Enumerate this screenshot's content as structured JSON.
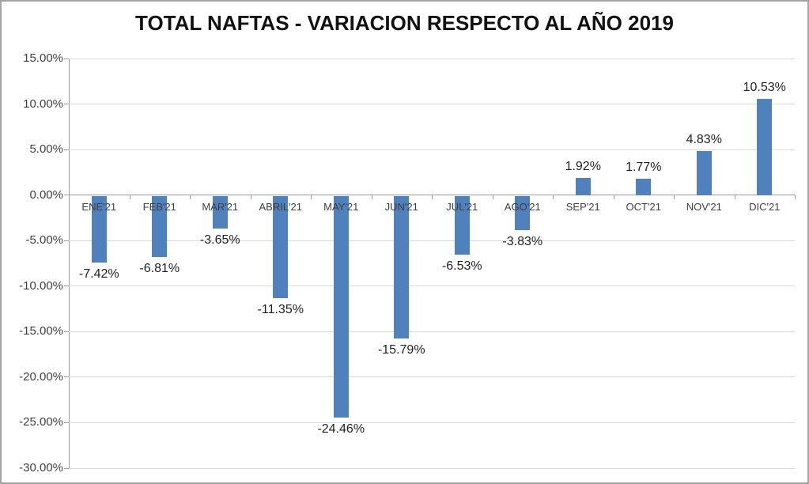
{
  "chart_data": {
    "type": "bar",
    "title": "TOTAL NAFTAS - VARIACION RESPECTO AL AÑO 2019",
    "categories": [
      "ENE'21",
      "FEB'21",
      "MAR'21",
      "ABRIL'21",
      "MAY'21",
      "JUN'21",
      "JUL'21",
      "AGO'21",
      "SEP'21",
      "OCT'21",
      "NOV'21",
      "DIC'21"
    ],
    "values": [
      -7.42,
      -6.81,
      -3.65,
      -11.35,
      -24.46,
      -15.79,
      -6.53,
      -3.83,
      1.92,
      1.77,
      4.83,
      10.53
    ],
    "data_labels": [
      "-7.42%",
      "-6.81%",
      "-3.65%",
      "-11.35%",
      "-24.46%",
      "-15.79%",
      "-6.53%",
      "-3.83%",
      "1.92%",
      "1.77%",
      "4.83%",
      "10.53%"
    ],
    "y_ticks": [
      15,
      10,
      5,
      0,
      -5,
      -10,
      -15,
      -20,
      -25,
      -30
    ],
    "y_tick_labels": [
      "15.00%",
      "10.00%",
      "5.00%",
      "0.00%",
      "-5.00%",
      "-10.00%",
      "-15.00%",
      "-20.00%",
      "-25.00%",
      "-30.00%"
    ],
    "ylim": [
      -30,
      15
    ],
    "xlabel": "",
    "ylabel": "",
    "grid": true,
    "legend": "none",
    "colors": {
      "bar": "#4F81BD",
      "gridline": "#D9D9D9",
      "axis": "#9C9C9C",
      "title_text": "#111111",
      "axis_text": "#3F3F3F",
      "value_text": "#1F1F1F",
      "frame_border": "#A4A4A4",
      "background": "#FFFFFF"
    }
  }
}
